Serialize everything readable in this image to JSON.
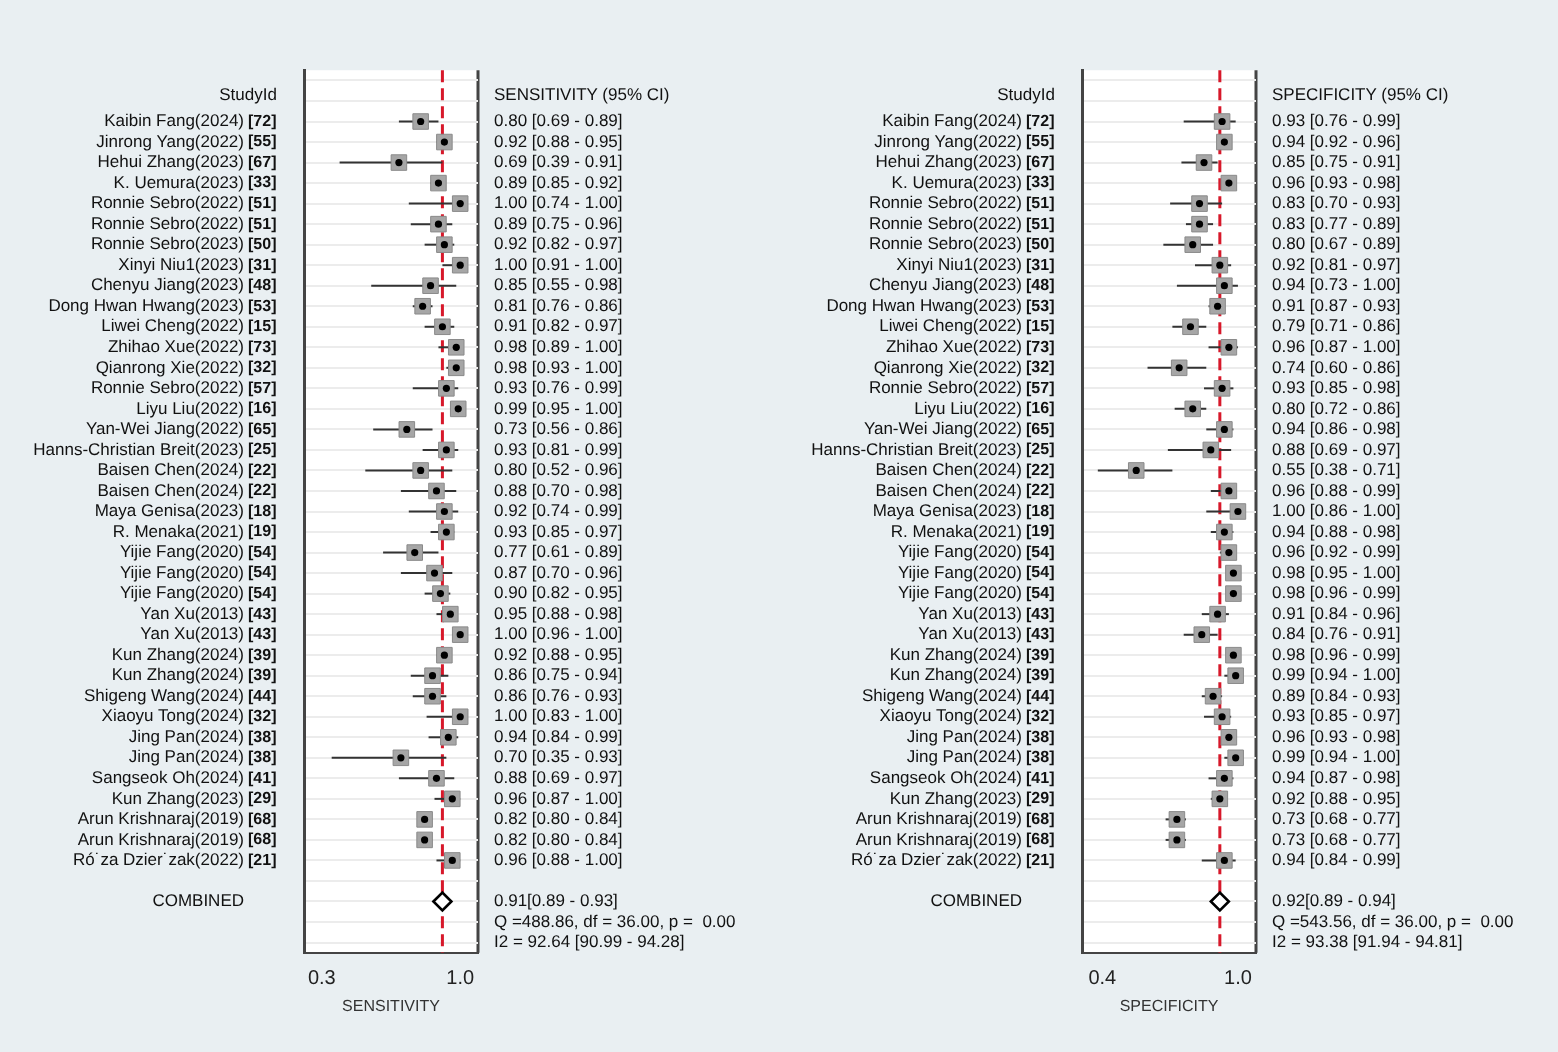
{
  "chart_data": [
    {
      "type": "scatter",
      "orientation": "horizontal",
      "xlabel": "SENSITIVITY",
      "xlim": [
        0.21,
        1.09
      ],
      "xticks": [
        0.3,
        {
          "value": 1,
          "label": "1.0"
        }
      ],
      "grid": "y",
      "legend": false,
      "categories": [
        null,
        null,
        "Kaibin Fang(2024)",
        "Jinrong Yang(2022)",
        "Hehui Zhang(2023)",
        "K. Uemura(2023)",
        "Ronnie Sebro(2022)",
        "Ronnie Sebro(2022)",
        "Ronnie Sebro(2023)",
        "Xinyi Niu1(2023)",
        "Chenyu Jiang(2023)",
        "Dong Hwan Hwang(2023)",
        "Liwei Cheng(2022)",
        "Zhihao Xue(2022)",
        "Qianrong Xie(2022)",
        "Ronnie Sebro(2022)",
        "Liyu Liu(2022)",
        "Yan-Wei Jiang(2022)",
        "Hanns-Christian Breit(2023)",
        "Baisen Chen(2024)",
        "Baisen Chen(2024)",
        "Maya Genisa(2023)",
        "R. Menaka(2021)",
        "Yijie Fang(2020)",
        "Yijie Fang(2020)",
        "Yijie Fang(2020)",
        "Yan Xu(2013)",
        "Yan Xu(2013)",
        "Kun Zhang(2024)",
        "Kun Zhang(2024)",
        "Shigeng Wang(2024)",
        "Xiaoyu Tong(2024)",
        "Jing Pan(2024)",
        "Jing Pan(2024)",
        "Sangseok Oh(2024)",
        "Kun Zhang(2023)",
        "Arun Krishnaraj(2019)",
        "Arun Krishnaraj(2019)",
        "Ró˙za Dzier˙zak(2022)",
        null,
        "COMBINED",
        null,
        null
      ],
      "y2_categories": [
        null,
        null,
        "[72]",
        "[55]",
        "[67]",
        "[33]",
        "[51]",
        "[51]",
        "[50]",
        "[31]",
        "[48]",
        "[53]",
        "[15]",
        "[73]",
        "[32]",
        "[57]",
        "[16]",
        "[65]",
        "[25]",
        "[22]",
        "[22]",
        "[18]",
        "[19]",
        "[54]",
        "[54]",
        "[54]",
        "[43]",
        "[43]",
        "[39]",
        "[39]",
        "[44]",
        "[32]",
        "[38]",
        "[38]",
        "[41]",
        "[29]",
        "[68]",
        "[68]",
        "[21]",
        null,
        null,
        null,
        null
      ],
      "ref_lines": [
        {
          "axis": "x",
          "value": 0.91,
          "color": "#d7182a",
          "line_style": "dashed"
        }
      ],
      "annotations": [
        "StudyId",
        "SENSITIVITY (95% CI)",
        "Q =488.86, df = 36.00, p =  0.00",
        "I2 = 92.64 [90.99 - 94.28]"
      ],
      "series": [
        {
          "marker": "square",
          "color": "#a6a6a6",
          "values": [
            null,
            null,
            0.8,
            0.92,
            0.69,
            0.89,
            1.0,
            0.89,
            0.92,
            1.0,
            0.85,
            0.81,
            0.91,
            0.98,
            0.98,
            0.93,
            0.99,
            0.73,
            0.93,
            0.8,
            0.88,
            0.92,
            0.93,
            0.77,
            0.87,
            0.9,
            0.95,
            1.0,
            0.92,
            0.86,
            0.86,
            1.0,
            0.94,
            0.7,
            0.88,
            0.96,
            0.82,
            0.82,
            0.96,
            null,
            null,
            null,
            null
          ],
          "errors": [
            null,
            null,
            [
              0.69,
              0.89
            ],
            [
              0.88,
              0.95
            ],
            [
              0.39,
              0.91
            ],
            [
              0.85,
              0.92
            ],
            [
              0.74,
              1.0
            ],
            [
              0.75,
              0.96
            ],
            [
              0.82,
              0.97
            ],
            [
              0.91,
              1.0
            ],
            [
              0.55,
              0.98
            ],
            [
              0.76,
              0.86
            ],
            [
              0.82,
              0.97
            ],
            [
              0.89,
              1.0
            ],
            [
              0.93,
              1.0
            ],
            [
              0.76,
              0.99
            ],
            [
              0.95,
              1.0
            ],
            [
              0.56,
              0.86
            ],
            [
              0.81,
              0.99
            ],
            [
              0.52,
              0.96
            ],
            [
              0.7,
              0.98
            ],
            [
              0.74,
              0.99
            ],
            [
              0.85,
              0.97
            ],
            [
              0.61,
              0.89
            ],
            [
              0.7,
              0.96
            ],
            [
              0.82,
              0.95
            ],
            [
              0.88,
              0.98
            ],
            [
              0.96,
              1.0
            ],
            [
              0.88,
              0.95
            ],
            [
              0.75,
              0.94
            ],
            [
              0.76,
              0.93
            ],
            [
              0.83,
              1.0
            ],
            [
              0.84,
              0.99
            ],
            [
              0.35,
              0.93
            ],
            [
              0.69,
              0.97
            ],
            [
              0.87,
              1.0
            ],
            [
              0.8,
              0.84
            ],
            [
              0.8,
              0.84
            ],
            [
              0.88,
              1.0
            ],
            null,
            null,
            null,
            null
          ],
          "value_labels": [
            null,
            null,
            "0.80 [0.69 - 0.89]",
            "0.92 [0.88 - 0.95]",
            "0.69 [0.39 - 0.91]",
            "0.89 [0.85 - 0.92]",
            "1.00 [0.74 - 1.00]",
            "0.89 [0.75 - 0.96]",
            "0.92 [0.82 - 0.97]",
            "1.00 [0.91 - 1.00]",
            "0.85 [0.55 - 0.98]",
            "0.81 [0.76 - 0.86]",
            "0.91 [0.82 - 0.97]",
            "0.98 [0.89 - 1.00]",
            "0.98 [0.93 - 1.00]",
            "0.93 [0.76 - 0.99]",
            "0.99 [0.95 - 1.00]",
            "0.73 [0.56 - 0.86]",
            "0.93 [0.81 - 0.99]",
            "0.80 [0.52 - 0.96]",
            "0.88 [0.70 - 0.98]",
            "0.92 [0.74 - 0.99]",
            "0.93 [0.85 - 0.97]",
            "0.77 [0.61 - 0.89]",
            "0.87 [0.70 - 0.96]",
            "0.90 [0.82 - 0.95]",
            "0.95 [0.88 - 0.98]",
            "1.00 [0.96 - 1.00]",
            "0.92 [0.88 - 0.95]",
            "0.86 [0.75 - 0.94]",
            "0.86 [0.76 - 0.93]",
            "1.00 [0.83 - 1.00]",
            "0.94 [0.84 - 0.99]",
            "0.70 [0.35 - 0.93]",
            "0.88 [0.69 - 0.97]",
            "0.96 [0.87 - 1.00]",
            "0.82 [0.80 - 0.84]",
            "0.82 [0.80 - 0.84]",
            "0.96 [0.88 - 1.00]",
            null,
            null,
            null,
            null
          ]
        },
        {
          "marker": "diamond",
          "color": "#000000",
          "values": [
            null,
            null,
            null,
            null,
            null,
            null,
            null,
            null,
            null,
            null,
            null,
            null,
            null,
            null,
            null,
            null,
            null,
            null,
            null,
            null,
            null,
            null,
            null,
            null,
            null,
            null,
            null,
            null,
            null,
            null,
            null,
            null,
            null,
            null,
            null,
            null,
            null,
            null,
            null,
            null,
            0.91,
            null,
            null
          ],
          "errors": [
            null,
            null,
            null,
            null,
            null,
            null,
            null,
            null,
            null,
            null,
            null,
            null,
            null,
            null,
            null,
            null,
            null,
            null,
            null,
            null,
            null,
            null,
            null,
            null,
            null,
            null,
            null,
            null,
            null,
            null,
            null,
            null,
            null,
            null,
            null,
            null,
            null,
            null,
            null,
            null,
            [
              0.89,
              0.93
            ],
            null,
            null
          ],
          "value_labels": [
            null,
            null,
            null,
            null,
            null,
            null,
            null,
            null,
            null,
            null,
            null,
            null,
            null,
            null,
            null,
            null,
            null,
            null,
            null,
            null,
            null,
            null,
            null,
            null,
            null,
            null,
            null,
            null,
            null,
            null,
            null,
            null,
            null,
            null,
            null,
            null,
            null,
            null,
            null,
            null,
            "0.91[0.89 - 0.93]",
            null,
            null
          ]
        }
      ]
    },
    {
      "type": "scatter",
      "orientation": "horizontal",
      "xlabel": "SPECIFICITY",
      "xlim": [
        0.31,
        1.08
      ],
      "xticks": [
        0.4,
        {
          "value": 1,
          "label": "1.0"
        }
      ],
      "grid": "y",
      "legend": false,
      "categories": [
        null,
        null,
        "Kaibin Fang(2024)",
        "Jinrong Yang(2022)",
        "Hehui Zhang(2023)",
        "K. Uemura(2023)",
        "Ronnie Sebro(2022)",
        "Ronnie Sebro(2022)",
        "Ronnie Sebro(2023)",
        "Xinyi Niu1(2023)",
        "Chenyu Jiang(2023)",
        "Dong Hwan Hwang(2023)",
        "Liwei Cheng(2022)",
        "Zhihao Xue(2022)",
        "Qianrong Xie(2022)",
        "Ronnie Sebro(2022)",
        "Liyu Liu(2022)",
        "Yan-Wei Jiang(2022)",
        "Hanns-Christian Breit(2023)",
        "Baisen Chen(2024)",
        "Baisen Chen(2024)",
        "Maya Genisa(2023)",
        "R. Menaka(2021)",
        "Yijie Fang(2020)",
        "Yijie Fang(2020)",
        "Yijie Fang(2020)",
        "Yan Xu(2013)",
        "Yan Xu(2013)",
        "Kun Zhang(2024)",
        "Kun Zhang(2024)",
        "Shigeng Wang(2024)",
        "Xiaoyu Tong(2024)",
        "Jing Pan(2024)",
        "Jing Pan(2024)",
        "Sangseok Oh(2024)",
        "Kun Zhang(2023)",
        "Arun Krishnaraj(2019)",
        "Arun Krishnaraj(2019)",
        "Ró˙za Dzier˙zak(2022)",
        null,
        "COMBINED",
        null,
        null
      ],
      "y2_categories": [
        null,
        null,
        "[72]",
        "[55]",
        "[67]",
        "[33]",
        "[51]",
        "[51]",
        "[50]",
        "[31]",
        "[48]",
        "[53]",
        "[15]",
        "[73]",
        "[32]",
        "[57]",
        "[16]",
        "[65]",
        "[25]",
        "[22]",
        "[22]",
        "[18]",
        "[19]",
        "[54]",
        "[54]",
        "[54]",
        "[43]",
        "[43]",
        "[39]",
        "[39]",
        "[44]",
        "[32]",
        "[38]",
        "[38]",
        "[41]",
        "[29]",
        "[68]",
        "[68]",
        "[21]",
        null,
        null,
        null,
        null
      ],
      "ref_lines": [
        {
          "axis": "x",
          "value": 0.92,
          "color": "#d7182a",
          "line_style": "dashed"
        }
      ],
      "annotations": [
        "StudyId",
        "SPECIFICITY (95% CI)",
        "Q =543.56, df = 36.00, p =  0.00",
        "I2 = 93.38 [91.94 - 94.81]"
      ],
      "series": [
        {
          "marker": "square",
          "color": "#a6a6a6",
          "values": [
            null,
            null,
            0.93,
            0.94,
            0.85,
            0.96,
            0.83,
            0.83,
            0.8,
            0.92,
            0.94,
            0.91,
            0.79,
            0.96,
            0.74,
            0.93,
            0.8,
            0.94,
            0.88,
            0.55,
            0.96,
            1.0,
            0.94,
            0.96,
            0.98,
            0.98,
            0.91,
            0.84,
            0.98,
            0.99,
            0.89,
            0.93,
            0.96,
            0.99,
            0.94,
            0.92,
            0.73,
            0.73,
            0.94,
            null,
            null,
            null,
            null
          ],
          "errors": [
            null,
            null,
            [
              0.76,
              0.99
            ],
            [
              0.92,
              0.96
            ],
            [
              0.75,
              0.91
            ],
            [
              0.93,
              0.98
            ],
            [
              0.7,
              0.93
            ],
            [
              0.77,
              0.89
            ],
            [
              0.67,
              0.89
            ],
            [
              0.81,
              0.97
            ],
            [
              0.73,
              1.0
            ],
            [
              0.87,
              0.93
            ],
            [
              0.71,
              0.86
            ],
            [
              0.87,
              1.0
            ],
            [
              0.6,
              0.86
            ],
            [
              0.85,
              0.98
            ],
            [
              0.72,
              0.86
            ],
            [
              0.86,
              0.98
            ],
            [
              0.69,
              0.97
            ],
            [
              0.38,
              0.71
            ],
            [
              0.88,
              0.99
            ],
            [
              0.86,
              1.0
            ],
            [
              0.88,
              0.98
            ],
            [
              0.92,
              0.99
            ],
            [
              0.95,
              1.0
            ],
            [
              0.96,
              0.99
            ],
            [
              0.84,
              0.96
            ],
            [
              0.76,
              0.91
            ],
            [
              0.96,
              0.99
            ],
            [
              0.94,
              1.0
            ],
            [
              0.84,
              0.93
            ],
            [
              0.85,
              0.97
            ],
            [
              0.93,
              0.98
            ],
            [
              0.94,
              1.0
            ],
            [
              0.87,
              0.98
            ],
            [
              0.88,
              0.95
            ],
            [
              0.68,
              0.77
            ],
            [
              0.68,
              0.77
            ],
            [
              0.84,
              0.99
            ],
            null,
            null,
            null,
            null
          ],
          "value_labels": [
            null,
            null,
            "0.93 [0.76 - 0.99]",
            "0.94 [0.92 - 0.96]",
            "0.85 [0.75 - 0.91]",
            "0.96 [0.93 - 0.98]",
            "0.83 [0.70 - 0.93]",
            "0.83 [0.77 - 0.89]",
            "0.80 [0.67 - 0.89]",
            "0.92 [0.81 - 0.97]",
            "0.94 [0.73 - 1.00]",
            "0.91 [0.87 - 0.93]",
            "0.79 [0.71 - 0.86]",
            "0.96 [0.87 - 1.00]",
            "0.74 [0.60 - 0.86]",
            "0.93 [0.85 - 0.98]",
            "0.80 [0.72 - 0.86]",
            "0.94 [0.86 - 0.98]",
            "0.88 [0.69 - 0.97]",
            "0.55 [0.38 - 0.71]",
            "0.96 [0.88 - 0.99]",
            "1.00 [0.86 - 1.00]",
            "0.94 [0.88 - 0.98]",
            "0.96 [0.92 - 0.99]",
            "0.98 [0.95 - 1.00]",
            "0.98 [0.96 - 0.99]",
            "0.91 [0.84 - 0.96]",
            "0.84 [0.76 - 0.91]",
            "0.98 [0.96 - 0.99]",
            "0.99 [0.94 - 1.00]",
            "0.89 [0.84 - 0.93]",
            "0.93 [0.85 - 0.97]",
            "0.96 [0.93 - 0.98]",
            "0.99 [0.94 - 1.00]",
            "0.94 [0.87 - 0.98]",
            "0.92 [0.88 - 0.95]",
            "0.73 [0.68 - 0.77]",
            "0.73 [0.68 - 0.77]",
            "0.94 [0.84 - 0.99]",
            null,
            null,
            null,
            null
          ]
        },
        {
          "marker": "diamond",
          "color": "#000000",
          "values": [
            null,
            null,
            null,
            null,
            null,
            null,
            null,
            null,
            null,
            null,
            null,
            null,
            null,
            null,
            null,
            null,
            null,
            null,
            null,
            null,
            null,
            null,
            null,
            null,
            null,
            null,
            null,
            null,
            null,
            null,
            null,
            null,
            null,
            null,
            null,
            null,
            null,
            null,
            null,
            null,
            0.92,
            null,
            null
          ],
          "errors": [
            null,
            null,
            null,
            null,
            null,
            null,
            null,
            null,
            null,
            null,
            null,
            null,
            null,
            null,
            null,
            null,
            null,
            null,
            null,
            null,
            null,
            null,
            null,
            null,
            null,
            null,
            null,
            null,
            null,
            null,
            null,
            null,
            null,
            null,
            null,
            null,
            null,
            null,
            null,
            null,
            [
              0.89,
              0.94
            ],
            null,
            null
          ],
          "value_labels": [
            null,
            null,
            null,
            null,
            null,
            null,
            null,
            null,
            null,
            null,
            null,
            null,
            null,
            null,
            null,
            null,
            null,
            null,
            null,
            null,
            null,
            null,
            null,
            null,
            null,
            null,
            null,
            null,
            null,
            null,
            null,
            null,
            null,
            null,
            null,
            null,
            null,
            null,
            null,
            null,
            "0.92[0.89 - 0.94]",
            null,
            null
          ]
        }
      ]
    }
  ]
}
